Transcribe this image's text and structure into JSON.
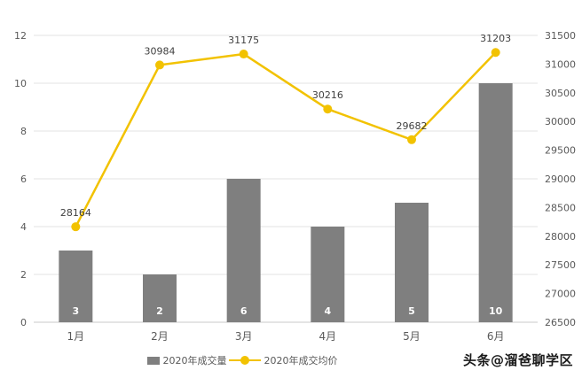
{
  "watermark": "头条@溜爸聊学区",
  "chart_data": {
    "type": "bar+line combo",
    "title": "",
    "categories": [
      "1月",
      "2月",
      "3月",
      "4月",
      "5月",
      "6月"
    ],
    "series": [
      {
        "name": "2020年成交量",
        "type": "bar",
        "axis": "left",
        "values": [
          3,
          2,
          6,
          4,
          5,
          10
        ],
        "color": "#7f7f7f",
        "value_label_color": "#ffffff"
      },
      {
        "name": "2020年成交均价",
        "type": "line",
        "axis": "right",
        "values": [
          28164,
          30984,
          31175,
          30216,
          29682,
          31203
        ],
        "color": "#f2c200",
        "value_label_color": "#404040"
      }
    ],
    "left_axis": {
      "min": 0,
      "max": 12,
      "step": 2,
      "ticks": [
        0,
        2,
        4,
        6,
        8,
        10,
        12
      ]
    },
    "right_axis": {
      "min": 26500,
      "max": 31500,
      "step": 500,
      "ticks": [
        26500,
        27000,
        27500,
        28000,
        28500,
        29000,
        29500,
        30000,
        30500,
        31000,
        31500
      ]
    },
    "grid": true,
    "legend_position": "bottom",
    "colors": {
      "gridline": "#e3e3e3",
      "baseline": "#c9c9c9",
      "axis_text": "#595959",
      "background": "#ffffff"
    }
  }
}
